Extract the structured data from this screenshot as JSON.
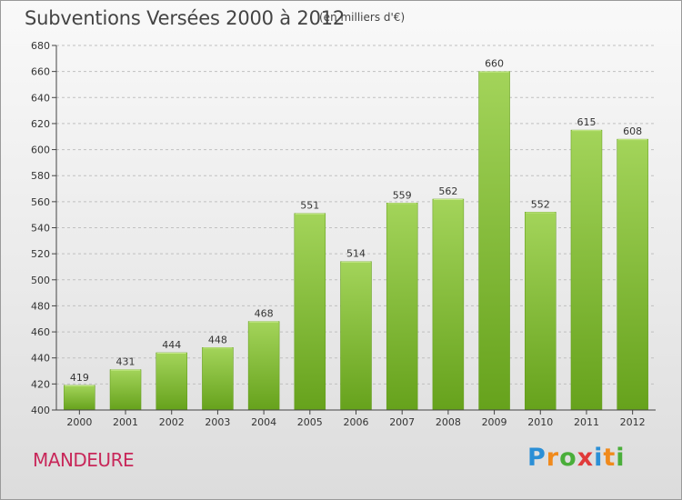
{
  "title": "Subventions Versées 2000 à 2012",
  "subtitle": "(en milliers d'€)",
  "city": "MANDEURE",
  "logo": {
    "letters": [
      "P",
      "r",
      "o",
      "x",
      "i",
      "t",
      "i"
    ],
    "colors": [
      "#2b8fd6",
      "#f08a1c",
      "#4aae3a",
      "#e03a3a",
      "#2b8fd6",
      "#f08a1c",
      "#4aae3a"
    ]
  },
  "colors": {
    "bar_top": "#a3d45a",
    "bar_bottom": "#66a21c",
    "grid": "#c0c0c0",
    "axis": "#444444"
  },
  "chart_data": {
    "type": "bar",
    "title": "Subventions Versées 2000 à 2012",
    "subtitle": "(en milliers d'€)",
    "categories": [
      "2000",
      "2001",
      "2002",
      "2003",
      "2004",
      "2005",
      "2006",
      "2007",
      "2008",
      "2009",
      "2010",
      "2011",
      "2012"
    ],
    "values": [
      419,
      431,
      444,
      448,
      468,
      551,
      514,
      559,
      562,
      660,
      552,
      615,
      608
    ],
    "ylim": [
      400,
      680
    ],
    "yticks": [
      400,
      420,
      440,
      460,
      480,
      500,
      520,
      540,
      560,
      580,
      600,
      620,
      640,
      660,
      680
    ],
    "grid": true
  }
}
